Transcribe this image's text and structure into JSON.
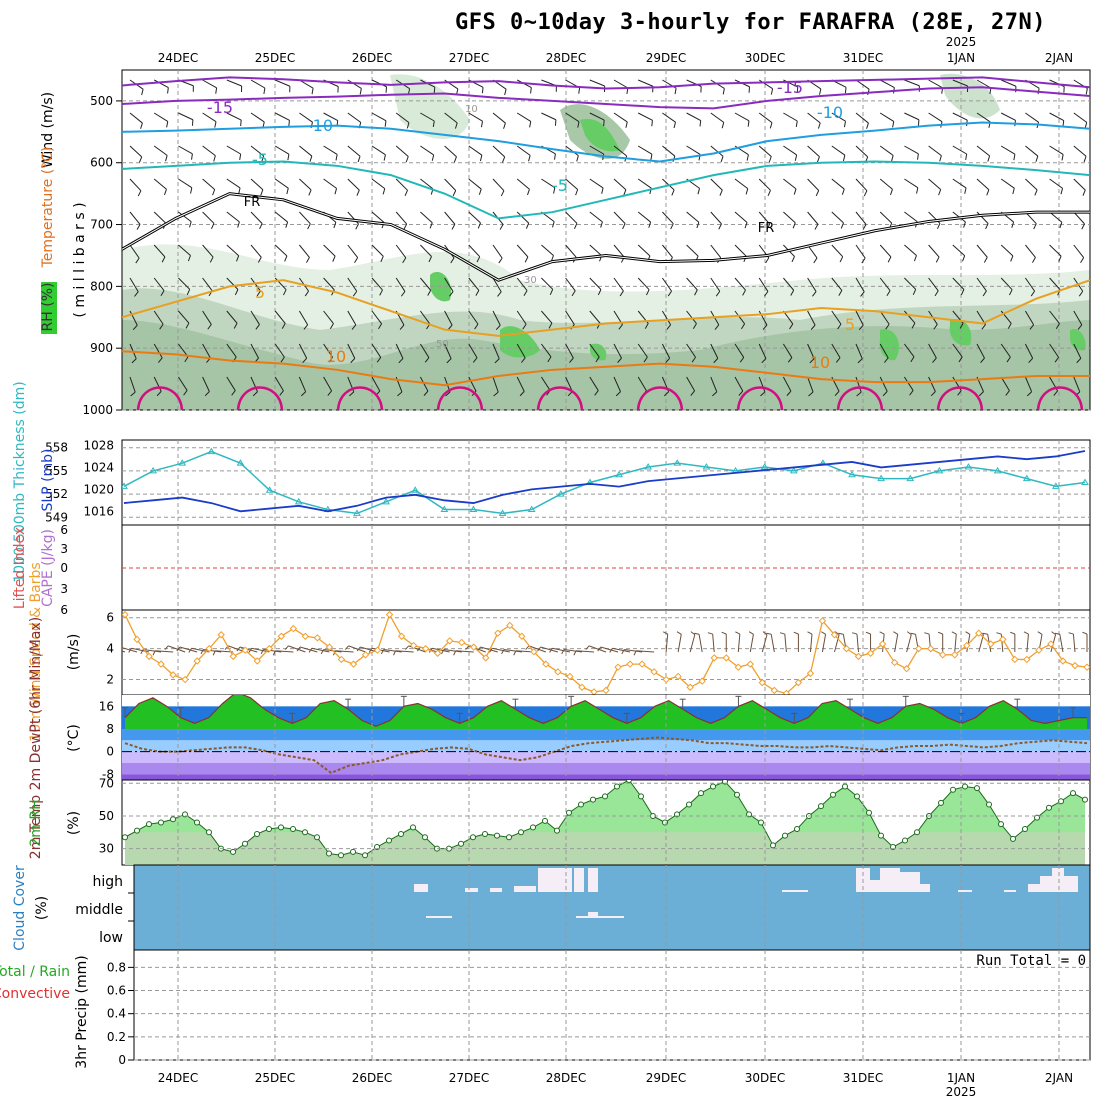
{
  "title": "GFS 0~10day 3-hourly for FARAFRA (28E, 27N)",
  "dates": [
    "24DEC",
    "25DEC",
    "26DEC",
    "27DEC",
    "28DEC",
    "29DEC",
    "30DEC",
    "31DEC",
    "1JAN",
    "2JAN"
  ],
  "year_label": "2025",
  "colors": {
    "wind_barb": "#000000",
    "rh_green": "#66cc66",
    "rh_light": "#e3f0e3",
    "rh_mid": "#b8d0b8",
    "temp_purple": "#8a2bbf",
    "temp_blue": "#1f9ee0",
    "temp_cyan": "#22b8b8",
    "temp_orange": "#e8a020",
    "temp_dark_orange": "#ea7a12",
    "temp_magenta": "#d01080",
    "slp_blue": "#1a3cc8",
    "thickness_cyan": "#30b8c0",
    "wind_orange": "#f0a030",
    "temp2m_green": "#22c022",
    "dewpt_brown": "#8b5a2b",
    "cloud_blue": "#6baed6"
  },
  "chart_data": [
    {
      "type": "contour",
      "panel": "vertical-profile",
      "ylabels": {
        "wind": "Wind (m/s)",
        "temperature": "Temperature (°C)",
        "rh": "RH (%)",
        "axis": "( m i l l i b a r s )"
      },
      "y_ticks": [
        500,
        600,
        700,
        800,
        900,
        1000
      ],
      "ylim": [
        450,
        1000
      ],
      "temperature_contours": [
        {
          "label": "-15",
          "level": -15,
          "values": [
            475,
            468,
            462,
            465,
            470,
            474,
            470,
            468,
            475,
            480,
            478,
            472,
            470,
            468,
            466,
            464,
            462,
            470,
            478
          ]
        },
        {
          "label": "-15",
          "level": -15,
          "values": [
            505,
            500,
            498,
            495,
            493,
            490,
            488,
            495,
            500,
            505,
            510,
            512,
            500,
            492,
            486,
            480,
            478,
            485,
            492
          ]
        },
        {
          "label": "-10",
          "level": -10,
          "values": [
            550,
            548,
            545,
            542,
            540,
            545,
            555,
            565,
            578,
            590,
            598,
            585,
            565,
            555,
            548,
            540,
            535,
            538,
            545
          ]
        },
        {
          "label": "-5",
          "level": -5,
          "values": [
            610,
            605,
            600,
            598,
            605,
            620,
            650,
            690,
            680,
            660,
            640,
            620,
            605,
            600,
            598,
            600,
            605,
            612,
            620
          ]
        },
        {
          "label": "5",
          "level": 5,
          "values": [
            850,
            825,
            800,
            790,
            810,
            840,
            870,
            880,
            870,
            860,
            855,
            850,
            845,
            835,
            840,
            850,
            860,
            820,
            790
          ]
        },
        {
          "label": "10",
          "level": 10,
          "values": [
            905,
            910,
            920,
            925,
            935,
            950,
            960,
            945,
            935,
            930,
            925,
            930,
            940,
            950,
            955,
            955,
            950,
            945,
            945
          ]
        }
      ],
      "freezing_level": {
        "label": "FR",
        "values": [
          740,
          690,
          650,
          660,
          690,
          700,
          740,
          790,
          760,
          750,
          760,
          758,
          750,
          730,
          710,
          695,
          685,
          680,
          680
        ]
      },
      "rh_labels": [
        "10",
        "30",
        "50"
      ]
    },
    {
      "type": "line",
      "panel": "thickness-slp",
      "ylabel_left": "1000-500mb Thickness (dm)",
      "ylabel_right": "SLP (mb)",
      "y_ticks_thickness": [
        549,
        552,
        555,
        558
      ],
      "y_ticks_slp": [
        1016,
        1020,
        1024,
        1028
      ],
      "series": [
        {
          "name": "thickness",
          "values": [
            553,
            555,
            556,
            557.5,
            556,
            552.5,
            551,
            550,
            549.5,
            551,
            552.5,
            550,
            550,
            549.5,
            550,
            552,
            553.5,
            554.5,
            555.5,
            556,
            555.5,
            555,
            555.5,
            555,
            556,
            554.5,
            554,
            554,
            555,
            555.5,
            555,
            554,
            553,
            553.5
          ]
        },
        {
          "name": "slp",
          "values": [
            1017.5,
            1018,
            1018.5,
            1017.5,
            1016,
            1016.5,
            1017,
            1016,
            1017,
            1018.5,
            1019,
            1018,
            1017.5,
            1019,
            1020,
            1020.5,
            1021,
            1020.5,
            1021.5,
            1022,
            1022.5,
            1023,
            1023.5,
            1024,
            1024.5,
            1025,
            1024,
            1024.5,
            1025,
            1025.5,
            1026,
            1025.5,
            1026,
            1027
          ]
        }
      ]
    },
    {
      "type": "line",
      "panel": "cape-li",
      "ylabel_left": "Lifted Index",
      "ylabel_right": "CAPE (J/kg)",
      "y_ticks": [
        "6",
        "3",
        "0",
        "3",
        "6"
      ],
      "series": [
        {
          "name": "lifted_index",
          "values": []
        },
        {
          "name": "cape",
          "values": []
        }
      ]
    },
    {
      "type": "line",
      "panel": "10m-wind",
      "ylabel": "10m Wind Speed & Barbs",
      "unit": "(m/s)",
      "y_ticks": [
        2,
        4,
        6
      ],
      "ylim": [
        1,
        6.5
      ],
      "x": [
        "24DEC",
        "24DEC 03",
        "24DEC 06",
        "24DEC 09",
        "24DEC 12",
        "24DEC 15",
        "24DEC 18",
        "24DEC 21",
        "25DEC",
        "25DEC 03",
        "25DEC 06",
        "25DEC 09",
        "25DEC 12",
        "25DEC 15",
        "25DEC 18",
        "25DEC 21",
        "26DEC",
        "26DEC 03",
        "26DEC 06",
        "26DEC 09",
        "26DEC 12",
        "26DEC 15",
        "26DEC 18",
        "26DEC 21",
        "27DEC",
        "27DEC 03",
        "27DEC 06",
        "27DEC 09",
        "27DEC 12",
        "27DEC 15",
        "27DEC 18",
        "27DEC 21",
        "28DEC",
        "28DEC 03",
        "28DEC 06",
        "28DEC 09",
        "28DEC 12",
        "28DEC 15",
        "28DEC 18",
        "28DEC 21",
        "29DEC",
        "29DEC 03",
        "29DEC 06",
        "29DEC 09",
        "29DEC 12",
        "29DEC 15",
        "29DEC 18",
        "29DEC 21",
        "30DEC",
        "30DEC 03",
        "30DEC 06",
        "30DEC 09",
        "30DEC 12",
        "30DEC 15",
        "30DEC 18",
        "30DEC 21",
        "31DEC",
        "31DEC 03",
        "31DEC 06",
        "31DEC 09",
        "31DEC 12",
        "31DEC 15",
        "31DEC 18",
        "31DEC 21",
        "1JAN",
        "1JAN 03",
        "1JAN 06",
        "1JAN 09",
        "1JAN 12",
        "1JAN 15",
        "1JAN 18",
        "1JAN 21",
        "2JAN",
        "2JAN 03",
        "2JAN 06",
        "2JAN 09",
        "2JAN 12",
        "2JAN 15",
        "2JAN 18",
        "2JAN 21",
        "3JAN"
      ],
      "series": [
        {
          "name": "speed",
          "values": [
            6.2,
            4.6,
            3.5,
            3.0,
            2.3,
            2.0,
            3.2,
            4.0,
            4.9,
            3.5,
            3.9,
            3.2,
            4.0,
            4.8,
            5.3,
            4.8,
            4.7,
            4.1,
            3.3,
            3.0,
            3.6,
            3.9,
            6.2,
            4.8,
            4.2,
            4.0,
            3.7,
            4.5,
            4.4,
            4.1,
            3.4,
            5.0,
            5.5,
            4.8,
            3.8,
            3.0,
            2.5,
            2.2,
            1.5,
            1.2,
            1.3,
            2.8,
            3.0,
            3.0,
            2.5,
            2.0,
            2.2,
            1.5,
            1.9,
            3.4,
            3.4,
            2.8,
            3.0,
            1.8,
            1.3,
            1.1,
            1.8,
            2.4,
            5.8,
            4.9,
            4.0,
            3.5,
            3.7,
            4.3,
            3.1,
            2.7,
            4.0,
            4.0,
            3.6,
            3.6,
            4.2,
            5.0,
            4.3,
            4.6,
            3.3,
            3.3,
            3.9,
            4.3,
            3.2,
            2.9,
            2.8
          ]
        }
      ]
    },
    {
      "type": "area",
      "panel": "2m-temp",
      "ylabel": "2m Temp 2m DewPt (6hr Min/Max)",
      "unit": "(°C)",
      "y_ticks": [
        -8,
        0,
        8,
        16
      ],
      "ylim": [
        -10,
        20
      ],
      "series": [
        {
          "name": "temp_2m",
          "values": [
            12,
            17,
            19,
            16,
            12,
            10,
            12,
            17,
            21,
            19,
            15,
            12,
            10,
            12,
            17,
            18,
            15,
            11,
            9,
            11,
            16,
            17,
            15,
            12,
            10,
            12,
            16,
            18,
            15,
            12,
            10,
            12,
            16,
            18,
            15,
            12,
            10,
            12,
            16,
            18,
            15,
            12,
            10,
            12,
            16,
            18,
            15,
            12,
            10,
            12,
            17,
            18,
            15,
            12,
            10,
            12,
            16,
            17,
            15,
            12,
            10,
            12,
            16,
            18,
            15,
            11,
            10,
            11,
            12,
            12
          ]
        },
        {
          "name": "dewpt_2m",
          "values": [
            3,
            1,
            0,
            0,
            0.5,
            1,
            1.5,
            1.5,
            0.5,
            -1,
            -2,
            -3,
            -7.5,
            -5,
            -4,
            -3,
            -1,
            0,
            1,
            1.5,
            1,
            -1,
            -2,
            -3,
            -2,
            0,
            2,
            3,
            3.5,
            4,
            4.5,
            5,
            4.5,
            4,
            3,
            3,
            2.5,
            2,
            2,
            1.5,
            1.5,
            2,
            1.5,
            1,
            0.5,
            1.5,
            2,
            2,
            2.5,
            2,
            1.5,
            2,
            3,
            3.5,
            4,
            3.5,
            3
          ]
        }
      ]
    },
    {
      "type": "area",
      "panel": "2m-rh",
      "ylabel": "2m RH",
      "unit": "(%)",
      "y_ticks": [
        30,
        50,
        70
      ],
      "ylim": [
        20,
        72
      ],
      "series": [
        {
          "name": "rh_2m",
          "values": [
            37,
            41,
            45,
            46,
            48,
            51,
            46,
            40,
            30,
            28,
            33,
            39,
            42,
            43,
            42,
            40,
            37,
            27,
            26,
            28,
            26,
            31,
            35,
            39,
            43,
            37,
            30,
            30,
            33,
            37,
            39,
            38,
            37,
            40,
            43,
            47,
            41,
            52,
            57,
            60,
            62,
            68,
            72,
            62,
            50,
            46,
            51,
            57,
            64,
            68,
            71,
            63,
            51,
            46,
            32,
            38,
            42,
            50,
            56,
            63,
            68,
            62,
            52,
            38,
            31,
            35,
            40,
            50,
            58,
            66,
            68,
            67,
            57,
            45,
            36,
            42,
            49,
            55,
            59,
            64,
            60
          ]
        }
      ]
    },
    {
      "type": "heatmap",
      "panel": "cloud-cover",
      "ylabel": "Cloud Cover",
      "unit": "(%)",
      "levels": [
        "high",
        "middle",
        "low"
      ]
    },
    {
      "type": "bar",
      "panel": "precip",
      "ylabel_left": "3hr Precip (mm)",
      "ylabel_total": "Total / Rain",
      "ylabel_conv": "Convective",
      "run_total": "Run Total = 0",
      "y_ticks": [
        "0",
        "0.2",
        "0.4",
        "0.6",
        "0.8"
      ],
      "ylim": [
        0,
        0.95
      ],
      "values": []
    }
  ]
}
